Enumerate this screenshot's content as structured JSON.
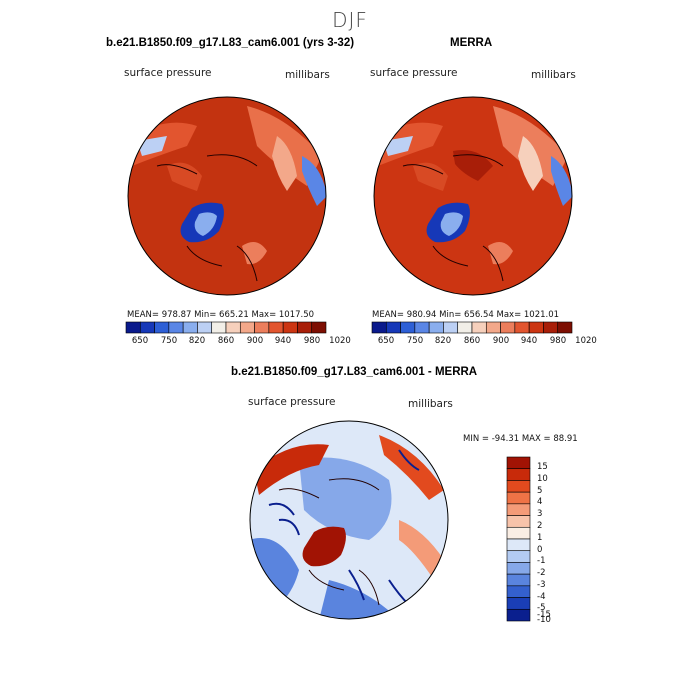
{
  "title": "DJF",
  "panels": [
    {
      "title": "b.e21.B1850.f09_g17.L83_cam6.001 (yrs 3-32)",
      "variable": "surface pressure",
      "units": "millibars",
      "stats": "MEAN= 978.87   Min= 665.21   Max= 1017.50"
    },
    {
      "title": "MERRA",
      "variable": "surface pressure",
      "units": "millibars",
      "stats": "MEAN= 980.94   Min= 656.54   Max= 1021.01"
    },
    {
      "title": "b.e21.B1850.f09_g17.L83_cam6.001 - MERRA",
      "variable": "surface pressure",
      "units": "millibars",
      "stats": "MIN = -94.31  MAX =  88.91"
    }
  ],
  "colorbar_top": {
    "colors": [
      "#0a1a8c",
      "#1638b8",
      "#2d5fd6",
      "#5a86e6",
      "#8aaeee",
      "#bcd0f4",
      "#f2efe8",
      "#f6d0bc",
      "#f3a88a",
      "#ec7e5c",
      "#e2552f",
      "#cc3512",
      "#a81e08",
      "#7d0e02"
    ],
    "labels": [
      "650",
      "750",
      "820",
      "860",
      "900",
      "940",
      "980",
      "1020"
    ]
  },
  "colorbar_diff": {
    "colors": [
      "#a11304",
      "#c82a0a",
      "#e24a1e",
      "#ef7346",
      "#f49b78",
      "#f7c3aa",
      "#faeee4",
      "#dde8f8",
      "#b3cbf2",
      "#86a8e9",
      "#5a84de",
      "#3460ce",
      "#1a3eb6",
      "#0a1f8e"
    ],
    "labels": [
      "15",
      "10",
      "5",
      "4",
      "3",
      "2",
      "1",
      "0",
      "-1",
      "-2",
      "-3",
      "-4",
      "-5",
      "-10",
      "-15"
    ]
  },
  "colors": {
    "map_red": "#c33310",
    "map_red_light": "#e2552f",
    "greenland_blue": "#2d5fd6",
    "diff_ocean": "#a9c4ee"
  }
}
